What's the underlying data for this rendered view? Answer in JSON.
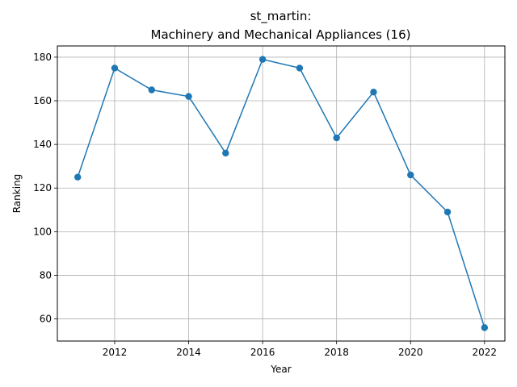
{
  "chart_data": {
    "type": "line",
    "title_lines": [
      "st_martin:",
      "Machinery and Mechanical Appliances (16)"
    ],
    "xlabel": "Year",
    "ylabel": "Ranking",
    "xlim": [
      2010.45,
      2022.55
    ],
    "ylim": [
      49.85,
      185.15
    ],
    "xticks": [
      2012,
      2014,
      2016,
      2018,
      2020,
      2022
    ],
    "yticks": [
      60,
      80,
      100,
      120,
      140,
      160,
      180
    ],
    "grid": true,
    "legend": "none",
    "series": [
      {
        "color": "#1f77b4",
        "marker": "circle",
        "points": [
          {
            "x": 2011,
            "y": 125
          },
          {
            "x": 2012,
            "y": 175
          },
          {
            "x": 2013,
            "y": 165
          },
          {
            "x": 2014,
            "y": 162
          },
          {
            "x": 2015,
            "y": 136
          },
          {
            "x": 2016,
            "y": 179
          },
          {
            "x": 2017,
            "y": 175
          },
          {
            "x": 2018,
            "y": 143
          },
          {
            "x": 2019,
            "y": 164
          },
          {
            "x": 2020,
            "y": 126
          },
          {
            "x": 2021,
            "y": 109
          },
          {
            "x": 2022,
            "y": 56
          }
        ]
      }
    ]
  }
}
